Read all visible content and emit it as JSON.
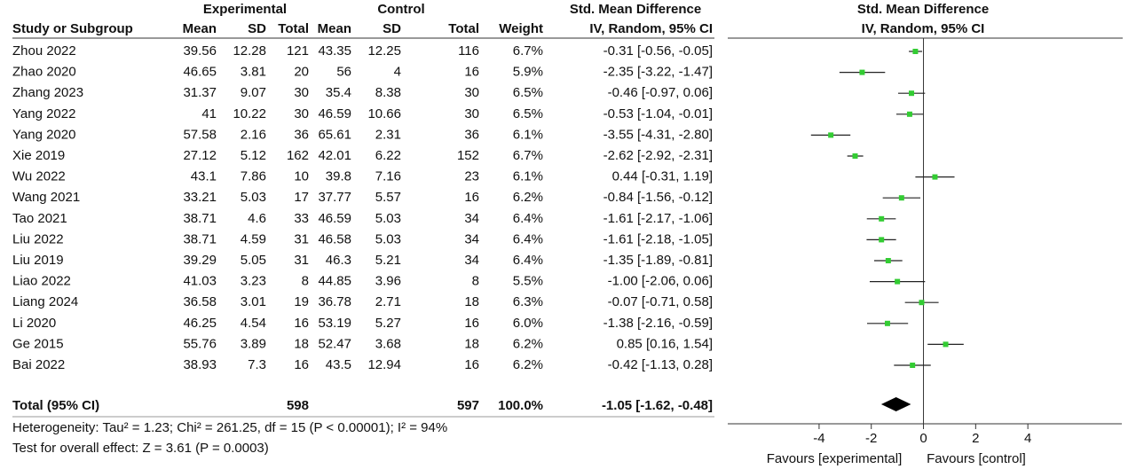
{
  "chart_data": {
    "type": "forest",
    "headers": {
      "study": "Study or Subgroup",
      "experimental": "Experimental",
      "control": "Control",
      "mean": "Mean",
      "sd": "SD",
      "total": "Total",
      "weight": "Weight",
      "effect": "Std. Mean Difference",
      "method": "IV, Random, 95% CI"
    },
    "studies": [
      {
        "study": "Zhou 2022",
        "exp_mean": 39.56,
        "exp_sd": 12.28,
        "exp_total": 121,
        "ctl_mean": 43.35,
        "ctl_sd": 12.25,
        "ctl_total": 116,
        "weight": "6.7%",
        "ci_label": "-0.31 [-0.56, -0.05]",
        "smd": -0.31,
        "lo": -0.56,
        "hi": -0.05
      },
      {
        "study": "Zhao 2020",
        "exp_mean": 46.65,
        "exp_sd": 3.81,
        "exp_total": 20,
        "ctl_mean": 56,
        "ctl_sd": 4,
        "ctl_total": 16,
        "weight": "5.9%",
        "ci_label": "-2.35 [-3.22, -1.47]",
        "smd": -2.35,
        "lo": -3.22,
        "hi": -1.47
      },
      {
        "study": "Zhang 2023",
        "exp_mean": 31.37,
        "exp_sd": 9.07,
        "exp_total": 30,
        "ctl_mean": 35.4,
        "ctl_sd": 8.38,
        "ctl_total": 30,
        "weight": "6.5%",
        "ci_label": "-0.46 [-0.97, 0.06]",
        "smd": -0.46,
        "lo": -0.97,
        "hi": 0.06
      },
      {
        "study": "Yang 2022",
        "exp_mean": 41,
        "exp_sd": 10.22,
        "exp_total": 30,
        "ctl_mean": 46.59,
        "ctl_sd": 10.66,
        "ctl_total": 30,
        "weight": "6.5%",
        "ci_label": "-0.53 [-1.04, -0.01]",
        "smd": -0.53,
        "lo": -1.04,
        "hi": -0.01
      },
      {
        "study": "Yang 2020",
        "exp_mean": 57.58,
        "exp_sd": 2.16,
        "exp_total": 36,
        "ctl_mean": 65.61,
        "ctl_sd": 2.31,
        "ctl_total": 36,
        "weight": "6.1%",
        "ci_label": "-3.55 [-4.31, -2.80]",
        "smd": -3.55,
        "lo": -4.31,
        "hi": -2.8
      },
      {
        "study": "Xie 2019",
        "exp_mean": 27.12,
        "exp_sd": 5.12,
        "exp_total": 162,
        "ctl_mean": 42.01,
        "ctl_sd": 6.22,
        "ctl_total": 152,
        "weight": "6.7%",
        "ci_label": "-2.62 [-2.92, -2.31]",
        "smd": -2.62,
        "lo": -2.92,
        "hi": -2.31
      },
      {
        "study": "Wu 2022",
        "exp_mean": 43.1,
        "exp_sd": 7.86,
        "exp_total": 10,
        "ctl_mean": 39.8,
        "ctl_sd": 7.16,
        "ctl_total": 23,
        "weight": "6.1%",
        "ci_label": "0.44 [-0.31, 1.19]",
        "smd": 0.44,
        "lo": -0.31,
        "hi": 1.19
      },
      {
        "study": "Wang 2021",
        "exp_mean": 33.21,
        "exp_sd": 5.03,
        "exp_total": 17,
        "ctl_mean": 37.77,
        "ctl_sd": 5.57,
        "ctl_total": 16,
        "weight": "6.2%",
        "ci_label": "-0.84 [-1.56, -0.12]",
        "smd": -0.84,
        "lo": -1.56,
        "hi": -0.12
      },
      {
        "study": "Tao 2021",
        "exp_mean": 38.71,
        "exp_sd": 4.6,
        "exp_total": 33,
        "ctl_mean": 46.59,
        "ctl_sd": 5.03,
        "ctl_total": 34,
        "weight": "6.4%",
        "ci_label": "-1.61 [-2.17, -1.06]",
        "smd": -1.61,
        "lo": -2.17,
        "hi": -1.06
      },
      {
        "study": "Liu 2022",
        "exp_mean": 38.71,
        "exp_sd": 4.59,
        "exp_total": 31,
        "ctl_mean": 46.58,
        "ctl_sd": 5.03,
        "ctl_total": 34,
        "weight": "6.4%",
        "ci_label": "-1.61 [-2.18, -1.05]",
        "smd": -1.61,
        "lo": -2.18,
        "hi": -1.05
      },
      {
        "study": "Liu 2019",
        "exp_mean": 39.29,
        "exp_sd": 5.05,
        "exp_total": 31,
        "ctl_mean": 46.3,
        "ctl_sd": 5.21,
        "ctl_total": 34,
        "weight": "6.4%",
        "ci_label": "-1.35 [-1.89, -0.81]",
        "smd": -1.35,
        "lo": -1.89,
        "hi": -0.81
      },
      {
        "study": "Liao 2022",
        "exp_mean": 41.03,
        "exp_sd": 3.23,
        "exp_total": 8,
        "ctl_mean": 44.85,
        "ctl_sd": 3.96,
        "ctl_total": 8,
        "weight": "5.5%",
        "ci_label": "-1.00 [-2.06, 0.06]",
        "smd": -1,
        "lo": -2.06,
        "hi": 0.06
      },
      {
        "study": "Liang 2024",
        "exp_mean": 36.58,
        "exp_sd": 3.01,
        "exp_total": 19,
        "ctl_mean": 36.78,
        "ctl_sd": 2.71,
        "ctl_total": 18,
        "weight": "6.3%",
        "ci_label": "-0.07 [-0.71, 0.58]",
        "smd": -0.07,
        "lo": -0.71,
        "hi": 0.58
      },
      {
        "study": "Li 2020",
        "exp_mean": 46.25,
        "exp_sd": 4.54,
        "exp_total": 16,
        "ctl_mean": 53.19,
        "ctl_sd": 5.27,
        "ctl_total": 16,
        "weight": "6.0%",
        "ci_label": "-1.38 [-2.16, -0.59]",
        "smd": -1.38,
        "lo": -2.16,
        "hi": -0.59
      },
      {
        "study": "Ge 2015",
        "exp_mean": 55.76,
        "exp_sd": 3.89,
        "exp_total": 18,
        "ctl_mean": 52.47,
        "ctl_sd": 3.68,
        "ctl_total": 18,
        "weight": "6.2%",
        "ci_label": "0.85 [0.16, 1.54]",
        "smd": 0.85,
        "lo": 0.16,
        "hi": 1.54
      },
      {
        "study": "Bai 2022",
        "exp_mean": 38.93,
        "exp_sd": 7.3,
        "exp_total": 16,
        "ctl_mean": 43.5,
        "ctl_sd": 12.94,
        "ctl_total": 16,
        "weight": "6.2%",
        "ci_label": "-0.42 [-1.13, 0.28]",
        "smd": -0.42,
        "lo": -1.13,
        "hi": 0.28
      }
    ],
    "total": {
      "study": "Total (95% CI)",
      "exp_total": 598,
      "ctl_total": 597,
      "weight": "100.0%",
      "ci_label": "-1.05 [-1.62, -0.48]",
      "smd": -1.05,
      "lo": -1.62,
      "hi": -0.48
    },
    "heterogeneity": "Heterogeneity: Tau² = 1.23; Chi² = 261.25, df = 15 (P < 0.00001); I² = 94%",
    "overall_test": "Test for overall effect: Z = 3.61 (P = 0.0003)",
    "xlim": [
      -7.5,
      7.6
    ],
    "xticks": [
      -4,
      -2,
      0,
      2,
      4
    ],
    "favours_left": "Favours [experimental]",
    "favours_right": "Favours [control]",
    "marker_color": "#33cc33",
    "diamond_color": "#000000"
  }
}
